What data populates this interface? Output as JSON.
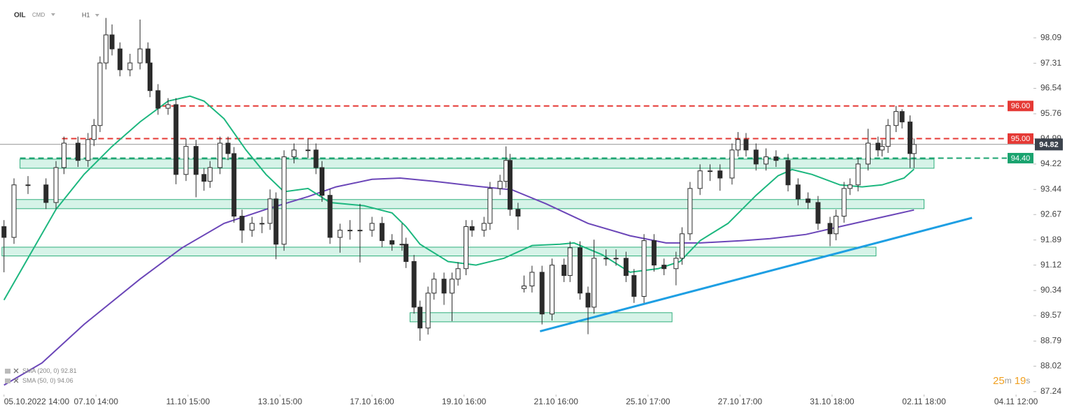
{
  "chart_data": {
    "type": "candlestick",
    "symbol": "OIL",
    "market": "CMD",
    "timeframe": "H1",
    "up_color": "#ffffff",
    "down_color": "#2b2b2b",
    "wick_color": "#2b2b2b",
    "x": [
      0,
      5,
      12,
      21,
      26,
      30,
      37,
      42,
      45,
      48,
      51,
      54,
      58,
      63,
      68,
      72,
      73,
      77,
      82,
      86,
      91,
      96,
      100,
      103,
      108,
      112,
      115,
      119,
      124,
      129,
      133,
      136,
      140,
      145,
      152,
      156,
      159,
      163,
      168,
      173,
      178,
      184,
      189,
      194,
      199,
      201,
      205,
      208,
      212,
      215,
      220,
      224,
      227,
      231,
      234,
      240,
      243,
      248,
      251,
      253,
      257,
      260,
      264,
      269,
      274,
      280,
      283,
      288,
      292,
      295,
      301,
      306,
      311,
      315,
      320,
      325,
      330,
      336,
      339,
      343,
      348,
      353,
      358,
      364,
      367,
      371,
      376,
      381,
      386,
      392,
      397,
      402,
      407,
      413,
      416,
      420,
      423,
      427,
      432,
      437,
      439,
      442,
      446,
      449,
      453,
      455
    ],
    "open": [
      92.3,
      91.97,
      93.58,
      93.58,
      93.04,
      94.11,
      94.86,
      94.33,
      94.97,
      95.4,
      97.32,
      98.18,
      97.75,
      97.11,
      97.32,
      97.75,
      97.32,
      96.47,
      95.93,
      96.04,
      93.9,
      94.76,
      93.9,
      93.69,
      94.11,
      94.86,
      94.54,
      92.62,
      92.19,
      92.4,
      92.4,
      93.15,
      91.76,
      94.44,
      94.65,
      94.65,
      94.11,
      93.26,
      91.97,
      92.19,
      92.19,
      92.19,
      92.4,
      91.87,
      91.76,
      91.76,
      91.23,
      89.83,
      89.19,
      90.26,
      90.69,
      90.26,
      90.69,
      91.01,
      92.3,
      92.19,
      92.4,
      93.47,
      93.69,
      94.33,
      92.83,
      90.4,
      90.48,
      90.9,
      89.62,
      91.12,
      90.8,
      91.65,
      90.26,
      89.83,
      91.33,
      91.33,
      91.33,
      90.8,
      90.16,
      91.87,
      91.12,
      91.01,
      91.33,
      92.08,
      93.47,
      94.01,
      94.01,
      93.79,
      94.65,
      94.97,
      94.65,
      94.22,
      94.44,
      94.33,
      93.58,
      93.15,
      93.04,
      92.4,
      92.08,
      92.62,
      93.47,
      93.58,
      94.22,
      94.86,
      94.65,
      94.76,
      95.4,
      95.83,
      95.51,
      94.54
    ],
    "high": [
      92.5,
      93.78,
      93.85,
      93.78,
      94.31,
      95.06,
      95.06,
      95.17,
      95.6,
      97.52,
      98.7,
      98.5,
      97.95,
      97.6,
      98.65,
      97.95,
      97.52,
      96.67,
      96.24,
      96.24,
      95.0,
      94.96,
      94.1,
      94.31,
      95.06,
      95.06,
      94.74,
      92.82,
      92.6,
      92.6,
      93.44,
      93.35,
      94.64,
      94.85,
      95.0,
      94.85,
      94.31,
      93.46,
      92.39,
      92.5,
      93.0,
      92.6,
      92.6,
      92.07,
      92.4,
      91.96,
      91.43,
      90.03,
      90.46,
      90.89,
      90.89,
      90.89,
      91.21,
      92.5,
      92.5,
      92.6,
      93.67,
      93.89,
      94.76,
      94.53,
      93.03,
      90.8,
      91.1,
      91.1,
      91.32,
      91.32,
      91.85,
      91.85,
      90.46,
      91.9,
      91.6,
      91.6,
      91.53,
      91.0,
      92.07,
      92.07,
      91.32,
      91.53,
      92.28,
      93.67,
      94.21,
      94.21,
      94.21,
      94.85,
      95.2,
      95.17,
      94.85,
      94.7,
      94.64,
      94.53,
      93.78,
      93.35,
      93.24,
      92.6,
      92.82,
      93.67,
      93.78,
      94.42,
      95.3,
      95.06,
      94.96,
      95.6,
      96.0,
      95.9,
      95.71,
      95.0
    ],
    "low": [
      90.9,
      91.77,
      93.3,
      92.84,
      92.84,
      93.91,
      94.13,
      94.13,
      94.77,
      95.2,
      97.12,
      97.55,
      96.91,
      96.91,
      97.12,
      97.12,
      96.27,
      95.73,
      95.73,
      93.6,
      93.7,
      93.2,
      93.4,
      93.49,
      93.91,
      94.34,
      92.42,
      91.8,
      91.99,
      92.1,
      92.2,
      91.3,
      91.56,
      94.24,
      94.4,
      93.91,
      93.06,
      91.77,
      91.5,
      91.9,
      91.2,
      91.99,
      91.67,
      91.56,
      91.56,
      91.03,
      89.63,
      88.8,
      88.99,
      90.06,
      89.9,
      89.4,
      90.49,
      90.81,
      91.99,
      91.99,
      92.2,
      93.27,
      93.49,
      92.63,
      92.2,
      90.28,
      90.28,
      89.3,
      89.42,
      90.6,
      90.6,
      90.06,
      89.0,
      89.63,
      91.1,
      91.1,
      90.6,
      89.96,
      89.96,
      90.92,
      90.81,
      90.5,
      91.13,
      91.88,
      93.27,
      93.7,
      93.4,
      93.59,
      94.45,
      94.45,
      94.02,
      94.02,
      94.13,
      93.38,
      92.95,
      92.84,
      92.2,
      91.7,
      91.88,
      92.42,
      93.27,
      93.38,
      94.02,
      94.45,
      94.45,
      94.56,
      95.2,
      95.31,
      94.1,
      94.1
    ],
    "close": [
      91.97,
      93.58,
      93.58,
      93.04,
      94.11,
      94.86,
      94.33,
      94.97,
      95.4,
      97.32,
      98.18,
      97.75,
      97.11,
      97.32,
      97.75,
      97.32,
      96.47,
      95.93,
      96.04,
      93.9,
      94.76,
      93.9,
      93.69,
      94.11,
      94.86,
      94.54,
      92.62,
      92.19,
      92.4,
      92.4,
      93.15,
      91.76,
      94.44,
      94.65,
      94.65,
      94.11,
      93.26,
      91.97,
      92.19,
      92.19,
      92.19,
      92.4,
      91.87,
      91.76,
      91.76,
      91.23,
      89.83,
      89.19,
      90.26,
      90.69,
      90.26,
      90.69,
      91.01,
      92.3,
      92.19,
      92.4,
      93.47,
      93.69,
      94.33,
      92.83,
      92.62,
      90.48,
      90.9,
      89.62,
      91.12,
      90.8,
      91.65,
      90.26,
      89.83,
      91.33,
      91.33,
      91.33,
      90.8,
      90.16,
      91.87,
      91.12,
      91.01,
      91.33,
      92.08,
      93.47,
      94.01,
      94.01,
      93.79,
      94.65,
      94.97,
      94.65,
      94.22,
      94.44,
      94.33,
      93.58,
      93.15,
      93.04,
      92.4,
      92.08,
      92.62,
      93.47,
      93.58,
      94.22,
      94.86,
      94.65,
      94.76,
      95.4,
      95.83,
      95.51,
      94.54,
      94.82
    ],
    "series": [
      {
        "name": "SMA (200, 0)",
        "color": "#6b46b8",
        "last": 92.81,
        "x": [
          0,
          19,
          40,
          68,
          89,
          110,
          131,
          152,
          166,
          184,
          198,
          215,
          236,
          254,
          271,
          292,
          313,
          331,
          348,
          369,
          383,
          401,
          418,
          436,
          455
        ],
        "values": [
          87.44,
          88.12,
          89.3,
          90.69,
          91.65,
          92.4,
          92.83,
          93.22,
          93.52,
          93.75,
          93.79,
          93.69,
          93.54,
          93.43,
          93.0,
          92.4,
          92.02,
          91.8,
          91.8,
          91.87,
          91.93,
          92.06,
          92.3,
          92.55,
          92.81
        ]
      },
      {
        "name": "SMA (50, 0)",
        "color": "#1db77f",
        "last": 94.06,
        "x": [
          0,
          12,
          26,
          40,
          54,
          68,
          82,
          93,
          100,
          110,
          121,
          131,
          140,
          152,
          163,
          180,
          194,
          201,
          208,
          222,
          236,
          250,
          264,
          278,
          285,
          299,
          313,
          327,
          338,
          348,
          362,
          376,
          387,
          394,
          404,
          418,
          429,
          439,
          450,
          455
        ],
        "values": [
          90.05,
          91.33,
          92.83,
          93.9,
          94.76,
          95.51,
          96.15,
          96.3,
          96.15,
          95.61,
          94.65,
          93.9,
          93.37,
          93.47,
          93.04,
          92.94,
          92.72,
          92.3,
          91.76,
          91.23,
          91.12,
          91.33,
          91.72,
          91.76,
          91.8,
          91.44,
          90.9,
          91.01,
          91.23,
          91.87,
          92.4,
          93.26,
          93.86,
          94.05,
          93.9,
          93.58,
          93.52,
          93.58,
          93.79,
          94.06
        ]
      }
    ],
    "levels": [
      {
        "value": 96,
        "label": "96.00",
        "color": "#e53935",
        "from": 79
      },
      {
        "value": 95,
        "label": "95.00",
        "color": "#e53935",
        "from": 29
      },
      {
        "value": 94.4,
        "label": "94.40",
        "color": "#1aa36f",
        "from": 8
      }
    ],
    "current_price": 94.82,
    "zones": [
      {
        "xlim": [
          8,
          465
        ],
        "ylim": [
          94.09,
          94.37
        ]
      },
      {
        "xlim": [
          4,
          460
        ],
        "ylim": [
          92.85,
          93.13
        ]
      },
      {
        "xlim": [
          -1,
          436
        ],
        "ylim": [
          91.4,
          91.67
        ]
      },
      {
        "xlim": [
          203,
          334
        ],
        "ylim": [
          89.38,
          89.66
        ]
      }
    ],
    "trendline": {
      "x": [
        268,
        484
      ],
      "values": [
        89.09,
        92.57
      ],
      "color": "#1e9fe3"
    },
    "countdown": [
      "25",
      "m",
      "19",
      "s"
    ],
    "xlim": [
      -2,
      514
    ],
    "xticks": [
      {
        "value": 0,
        "label": "05.10.2022 14:00"
      },
      {
        "value": 46,
        "label": "07.10 14:00"
      },
      {
        "value": 92,
        "label": "11.10 15:00"
      },
      {
        "value": 138,
        "label": "13.10 15:00"
      },
      {
        "value": 184,
        "label": "17.10 16:00"
      },
      {
        "value": 230,
        "label": "19.10 16:00"
      },
      {
        "value": 276,
        "label": "21.10 16:00"
      },
      {
        "value": 322,
        "label": "25.10 17:00"
      },
      {
        "value": 368,
        "label": "27.10 17:00"
      },
      {
        "value": 414,
        "label": "31.10 18:00"
      },
      {
        "value": 460,
        "label": "02.11 18:00"
      },
      {
        "value": 506,
        "label": "04.11 12:00"
      }
    ],
    "ylim": [
      87.15,
      99.25
    ],
    "yticks": [
      98.09,
      97.31,
      96.54,
      95.76,
      94.99,
      94.22,
      93.44,
      92.67,
      91.89,
      91.12,
      90.34,
      89.57,
      88.79,
      88.02,
      87.24
    ]
  }
}
